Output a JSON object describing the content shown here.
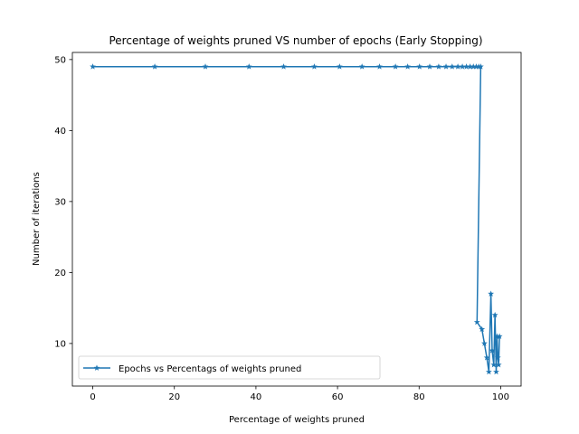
{
  "chart_data": {
    "type": "line",
    "title": "Percentage of weights pruned VS number of epochs (Early Stopping)",
    "xlabel": "Percentage of weights pruned",
    "ylabel": "Number of iterations",
    "xlim": [
      -5,
      105
    ],
    "ylim": [
      4,
      51
    ],
    "xticks": [
      0,
      20,
      40,
      60,
      80,
      100
    ],
    "yticks": [
      10,
      20,
      30,
      40,
      50
    ],
    "grid": false,
    "legend_position": "lower-left",
    "series": [
      {
        "name": "Epochs vs Percentags of weights pruned",
        "color": "#1f77b4",
        "marker": "star",
        "x": [
          0,
          15.2,
          27.6,
          38.3,
          46.8,
          54.3,
          60.5,
          66,
          70.3,
          74.2,
          77.2,
          80.1,
          82.6,
          84.8,
          86.6,
          88.1,
          89.5,
          90.6,
          91.6,
          92.5,
          93.3,
          94,
          94.6,
          95.1,
          94.2,
          95.4,
          96,
          96.6,
          97.1,
          97.6,
          97.9,
          98.3,
          98.6,
          98.9,
          99.1,
          99.3,
          99.5,
          99.7
        ],
        "y": [
          49,
          49,
          49,
          49,
          49,
          49,
          49,
          49,
          49,
          49,
          49,
          49,
          49,
          49,
          49,
          49,
          49,
          49,
          49,
          49,
          49,
          49,
          49,
          49,
          13,
          12,
          10,
          8,
          6,
          17,
          9,
          7,
          14,
          6,
          11,
          8,
          7,
          11
        ]
      }
    ]
  }
}
